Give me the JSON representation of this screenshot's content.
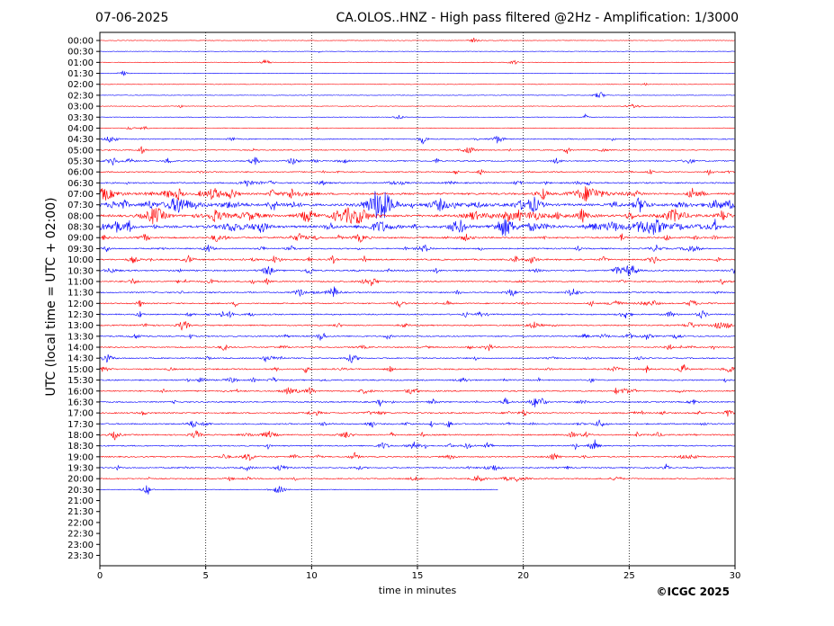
{
  "header": {
    "date": "07-06-2025",
    "title": "CA.OLOS..HNZ - High pass filtered @2Hz - Amplification: 1/3000"
  },
  "copyright": "©ICGC 2025",
  "colors": {
    "trace_a": "#ff0000",
    "trace_b": "#0000ff",
    "grid": "#000000"
  },
  "chart_data": {
    "type": "line",
    "xlabel": "time in minutes",
    "ylabel": "UTC (local time = UTC + 02:00)",
    "xlim": [
      0,
      30
    ],
    "x_ticks": [
      0,
      5,
      10,
      15,
      20,
      25,
      30
    ],
    "row_labels": [
      "00:00",
      "00:30",
      "01:00",
      "01:30",
      "02:00",
      "02:30",
      "03:00",
      "03:30",
      "04:00",
      "04:30",
      "05:00",
      "05:30",
      "06:00",
      "06:30",
      "07:00",
      "07:30",
      "08:00",
      "08:30",
      "09:00",
      "09:30",
      "10:00",
      "10:30",
      "11:00",
      "11:30",
      "12:00",
      "12:30",
      "13:00",
      "13:30",
      "14:00",
      "14:30",
      "15:00",
      "15:30",
      "16:00",
      "16:30",
      "17:00",
      "17:30",
      "18:00",
      "18:30",
      "19:00",
      "19:30",
      "20:00",
      "20:30",
      "21:00",
      "21:30",
      "22:00",
      "22:30",
      "23:00",
      "23:30"
    ],
    "recorded_rows": 42,
    "last_row_end_minute": 18.8,
    "activity": [
      0.05,
      0.05,
      0.06,
      0.05,
      0.05,
      0.05,
      0.08,
      0.06,
      0.1,
      0.3,
      0.25,
      0.35,
      0.35,
      0.5,
      0.8,
      1.0,
      1.0,
      1.0,
      0.6,
      0.45,
      0.55,
      0.5,
      0.45,
      0.4,
      0.4,
      0.45,
      0.4,
      0.4,
      0.35,
      0.4,
      0.45,
      0.4,
      0.45,
      0.4,
      0.45,
      0.45,
      0.45,
      0.4,
      0.4,
      0.4,
      0.35,
      0.1
    ]
  }
}
